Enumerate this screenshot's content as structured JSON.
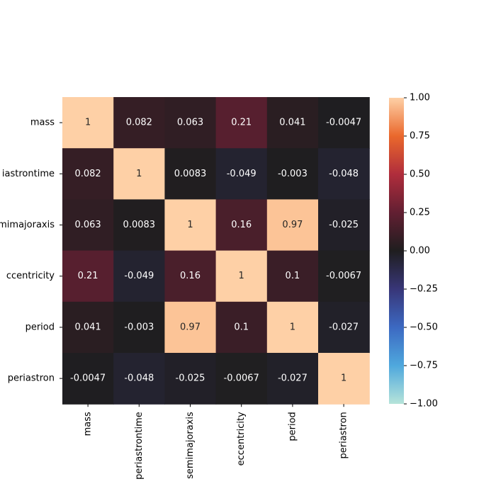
{
  "chart_data": {
    "type": "heatmap",
    "title": "",
    "xlabel": "",
    "ylabel": "",
    "x_categories": [
      "mass",
      "periastrontime",
      "semimajoraxis",
      "eccentricity",
      "period",
      "periastron"
    ],
    "y_categories": [
      "mass",
      "periastrontime",
      "semimajoraxis",
      "eccentricity",
      "period",
      "periastron"
    ],
    "y_tick_labels_visible": [
      "mass",
      "iastrontime",
      "mimajoraxis",
      "ccentricity",
      "period",
      "periastron"
    ],
    "values": [
      [
        1,
        0.082,
        0.063,
        0.21,
        0.041,
        -0.0047
      ],
      [
        0.082,
        1,
        0.0083,
        -0.049,
        -0.003,
        -0.048
      ],
      [
        0.063,
        0.0083,
        1,
        0.16,
        0.97,
        -0.025
      ],
      [
        0.21,
        -0.049,
        0.16,
        1,
        0.1,
        -0.0067
      ],
      [
        0.041,
        -0.003,
        0.97,
        0.1,
        1,
        -0.027
      ],
      [
        -0.0047,
        -0.048,
        -0.025,
        -0.0067,
        -0.027,
        1
      ]
    ],
    "annotations": [
      [
        "1",
        "0.082",
        "0.063",
        "0.21",
        "0.041",
        "-0.0047"
      ],
      [
        "0.082",
        "1",
        "0.0083",
        "-0.049",
        "-0.003",
        "-0.048"
      ],
      [
        "0.063",
        "0.0083",
        "1",
        "0.16",
        "0.97",
        "-0.025"
      ],
      [
        "0.21",
        "-0.049",
        "0.16",
        "1",
        "0.1",
        "-0.0067"
      ],
      [
        "0.041",
        "-0.003",
        "0.97",
        "0.1",
        "1",
        "-0.027"
      ],
      [
        "-0.0047",
        "-0.048",
        "-0.025",
        "-0.0067",
        "-0.027",
        "1"
      ]
    ],
    "colorbar": {
      "vmin": -1.0,
      "vmax": 1.0,
      "colormap": "icefire",
      "ticks": [
        1.0,
        0.75,
        0.5,
        0.25,
        0.0,
        -0.25,
        -0.5,
        -0.75,
        -1.0
      ],
      "tick_labels": [
        "1.00",
        "0.75",
        "0.50",
        "0.25",
        "0.00",
        "−0.25",
        "−0.50",
        "−0.75",
        "−1.00"
      ]
    },
    "grid": false,
    "legend": "colorbar-right"
  }
}
